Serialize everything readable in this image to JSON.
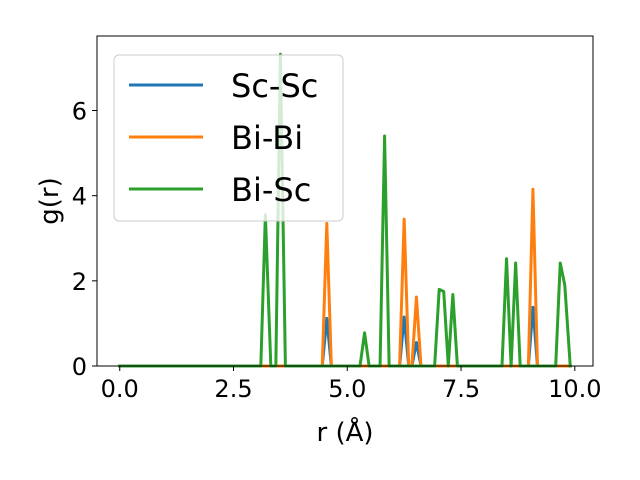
{
  "chart_data": {
    "type": "line",
    "xlabel": "r (Å)",
    "ylabel": "g(r)",
    "xlim": [
      -0.5,
      10.4
    ],
    "ylim": [
      0,
      7.75
    ],
    "xticks": [
      0.0,
      2.5,
      5.0,
      7.5,
      10.0
    ],
    "xtick_labels": [
      "0.0",
      "2.5",
      "5.0",
      "7.5",
      "10.0"
    ],
    "yticks": [
      0,
      2,
      4,
      6
    ],
    "ytick_labels": [
      "0",
      "2",
      "4",
      "6"
    ],
    "grid": false,
    "legend": "top-left",
    "series": [
      {
        "name": "Sc-Sc",
        "color": "#1f77b4",
        "x": [
          0.0,
          4.45,
          4.55,
          4.65,
          6.15,
          6.25,
          6.35,
          6.42,
          6.52,
          6.62,
          8.98,
          9.08,
          9.18,
          9.9
        ],
        "y": [
          0.0,
          0.0,
          1.12,
          0.0,
          0.0,
          1.15,
          0.0,
          0.0,
          0.55,
          0.0,
          0.0,
          1.38,
          0.0,
          0.0
        ]
      },
      {
        "name": "Bi-Bi",
        "color": "#ff7f0e",
        "x": [
          0.0,
          4.45,
          4.55,
          4.65,
          6.15,
          6.25,
          6.35,
          6.42,
          6.52,
          6.62,
          8.98,
          9.08,
          9.18,
          9.9
        ],
        "y": [
          0.0,
          0.0,
          3.35,
          0.0,
          0.0,
          3.45,
          0.0,
          0.0,
          1.62,
          0.0,
          0.0,
          4.15,
          0.0,
          0.0
        ]
      },
      {
        "name": "Bi-Sc",
        "color": "#2ca02c",
        "x": [
          0.0,
          3.1,
          3.2,
          3.32,
          3.43,
          3.53,
          3.64,
          5.28,
          5.38,
          5.48,
          5.72,
          5.82,
          5.92,
          6.92,
          7.02,
          7.12,
          7.22,
          7.32,
          7.42,
          7.52,
          8.4,
          8.5,
          8.6,
          8.7,
          8.8,
          9.58,
          9.68,
          9.78,
          9.9
        ],
        "y": [
          0.0,
          0.0,
          3.55,
          0.0,
          0.0,
          7.32,
          0.0,
          0.0,
          0.78,
          0.0,
          0.0,
          5.4,
          0.0,
          0.0,
          1.8,
          1.75,
          0.0,
          1.68,
          0.0,
          0.0,
          0.0,
          2.52,
          0.0,
          2.42,
          0.0,
          0.0,
          2.42,
          1.9,
          0.0
        ]
      }
    ]
  }
}
